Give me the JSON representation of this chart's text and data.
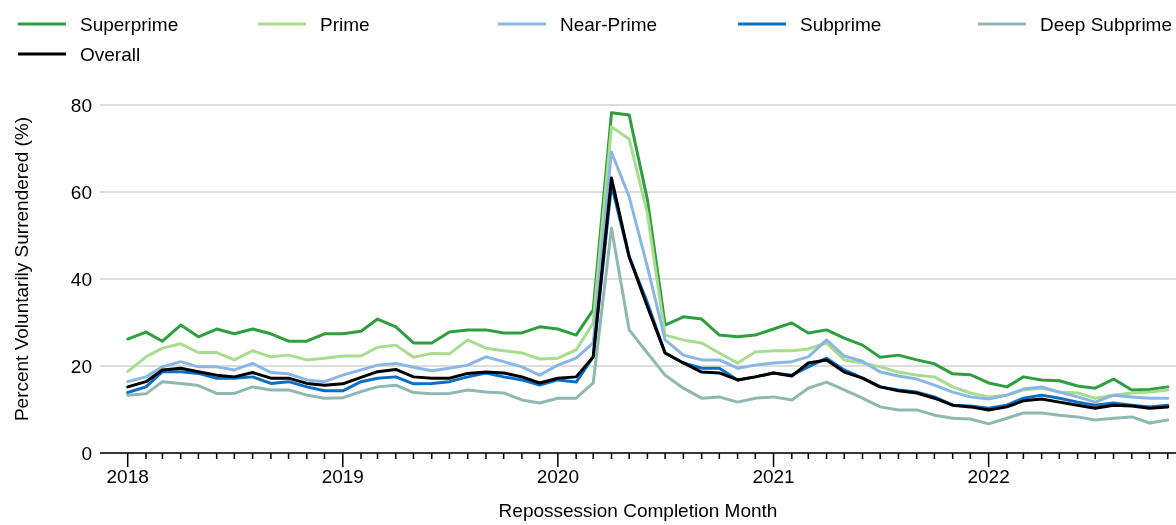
{
  "chart_data": {
    "type": "line",
    "xlabel": "Repossession Completion Month",
    "ylabel": "Percent Voluntarily Surrendered (%)",
    "x": [
      "2018-01",
      "2018-02",
      "2018-03",
      "2018-04",
      "2018-05",
      "2018-06",
      "2018-07",
      "2018-08",
      "2018-09",
      "2018-10",
      "2018-11",
      "2018-12",
      "2019-01",
      "2019-02",
      "2019-03",
      "2019-04",
      "2019-05",
      "2019-06",
      "2019-07",
      "2019-08",
      "2019-09",
      "2019-10",
      "2019-11",
      "2019-12",
      "2020-01",
      "2020-02",
      "2020-03",
      "2020-04",
      "2020-05",
      "2020-06",
      "2020-07",
      "2020-08",
      "2020-09",
      "2020-10",
      "2020-11",
      "2020-12",
      "2021-01",
      "2021-02",
      "2021-03",
      "2021-04",
      "2021-05",
      "2021-06",
      "2021-07",
      "2021-08",
      "2021-09",
      "2021-10",
      "2021-11",
      "2021-12",
      "2022-01",
      "2022-02",
      "2022-03",
      "2022-04",
      "2022-05",
      "2022-06",
      "2022-07",
      "2022-08",
      "2022-09",
      "2022-10",
      "2022-11"
    ],
    "xlim": [
      "2017-11-15",
      "2022-11-15"
    ],
    "xticks": [
      {
        "value": "2018-01",
        "label": "2018"
      },
      {
        "value": "2018-02",
        "label": null
      },
      {
        "value": "2018-03",
        "label": null
      },
      {
        "value": "2018-04",
        "label": null
      },
      {
        "value": "2018-05",
        "label": null
      },
      {
        "value": "2018-06",
        "label": null
      },
      {
        "value": "2018-07",
        "label": null
      },
      {
        "value": "2018-08",
        "label": null
      },
      {
        "value": "2018-09",
        "label": null
      },
      {
        "value": "2018-10",
        "label": null
      },
      {
        "value": "2018-11",
        "label": null
      },
      {
        "value": "2018-12",
        "label": null
      },
      {
        "value": "2019-01",
        "label": "2019"
      },
      {
        "value": "2019-02",
        "label": null
      },
      {
        "value": "2019-03",
        "label": null
      },
      {
        "value": "2019-04",
        "label": null
      },
      {
        "value": "2019-05",
        "label": null
      },
      {
        "value": "2019-06",
        "label": null
      },
      {
        "value": "2019-07",
        "label": null
      },
      {
        "value": "2019-08",
        "label": null
      },
      {
        "value": "2019-09",
        "label": null
      },
      {
        "value": "2019-10",
        "label": null
      },
      {
        "value": "2019-11",
        "label": null
      },
      {
        "value": "2019-12",
        "label": null
      },
      {
        "value": "2020-01",
        "label": "2020"
      },
      {
        "value": "2020-02",
        "label": null
      },
      {
        "value": "2020-03",
        "label": null
      },
      {
        "value": "2020-04",
        "label": null
      },
      {
        "value": "2020-05",
        "label": null
      },
      {
        "value": "2020-06",
        "label": null
      },
      {
        "value": "2020-07",
        "label": null
      },
      {
        "value": "2020-08",
        "label": null
      },
      {
        "value": "2020-09",
        "label": null
      },
      {
        "value": "2020-10",
        "label": null
      },
      {
        "value": "2020-11",
        "label": null
      },
      {
        "value": "2020-12",
        "label": null
      },
      {
        "value": "2021-01",
        "label": "2021"
      },
      {
        "value": "2021-02",
        "label": null
      },
      {
        "value": "2021-03",
        "label": null
      },
      {
        "value": "2021-04",
        "label": null
      },
      {
        "value": "2021-05",
        "label": null
      },
      {
        "value": "2021-06",
        "label": null
      },
      {
        "value": "2021-07",
        "label": null
      },
      {
        "value": "2021-08",
        "label": null
      },
      {
        "value": "2021-09",
        "label": null
      },
      {
        "value": "2021-10",
        "label": null
      },
      {
        "value": "2021-11",
        "label": null
      },
      {
        "value": "2021-12",
        "label": null
      },
      {
        "value": "2022-01",
        "label": "2022"
      },
      {
        "value": "2022-02",
        "label": null
      },
      {
        "value": "2022-03",
        "label": null
      },
      {
        "value": "2022-04",
        "label": null
      },
      {
        "value": "2022-05",
        "label": null
      },
      {
        "value": "2022-06",
        "label": null
      },
      {
        "value": "2022-07",
        "label": null
      },
      {
        "value": "2022-08",
        "label": null
      },
      {
        "value": "2022-09",
        "label": null
      },
      {
        "value": "2022-10",
        "label": null
      },
      {
        "value": "2022-11",
        "label": null
      }
    ],
    "ylim": [
      0,
      80
    ],
    "yticks": [
      0,
      20,
      40,
      60,
      80
    ],
    "grid": "y",
    "legend": "top",
    "series": [
      {
        "name": "Superprime",
        "color": "#2e9e3e",
        "values": [
          26.2,
          27.8,
          25.7,
          29.4,
          26.7,
          28.5,
          27.4,
          28.5,
          27.4,
          25.7,
          25.7,
          27.4,
          27.4,
          28.0,
          30.8,
          29.0,
          25.3,
          25.3,
          27.8,
          28.3,
          28.3,
          27.6,
          27.6,
          29.0,
          28.5,
          27.1,
          32.9,
          78.2,
          77.7,
          58.2,
          29.4,
          31.3,
          30.8,
          27.1,
          26.7,
          27.1,
          28.5,
          29.9,
          27.6,
          28.3,
          26.4,
          24.8,
          22.0,
          22.5,
          21.4,
          20.5,
          18.2,
          18.0,
          16.1,
          15.2,
          17.5,
          16.8,
          16.6,
          15.4,
          14.9,
          17.0,
          14.5,
          14.6,
          15.2
        ]
      },
      {
        "name": "Prime",
        "color": "#a8dc8e",
        "values": [
          18.7,
          22.1,
          24.1,
          25.1,
          23.1,
          23.1,
          21.4,
          23.5,
          22.1,
          22.5,
          21.4,
          21.8,
          22.3,
          22.3,
          24.3,
          24.8,
          22.0,
          22.9,
          22.8,
          26.0,
          24.1,
          23.5,
          23.0,
          21.6,
          21.8,
          23.7,
          29.9,
          75.0,
          72.2,
          55.0,
          27.1,
          26.0,
          25.3,
          23.0,
          20.7,
          23.2,
          23.5,
          23.5,
          23.9,
          25.3,
          21.4,
          20.7,
          19.8,
          18.6,
          17.9,
          17.5,
          15.2,
          13.8,
          12.9,
          13.3,
          14.5,
          14.9,
          14.0,
          13.8,
          12.6,
          13.3,
          13.8,
          14.0,
          14.5
        ]
      },
      {
        "name": "Near-Prime",
        "color": "#8ab6e6",
        "values": [
          16.4,
          17.5,
          19.8,
          21.0,
          19.8,
          19.8,
          19.1,
          20.6,
          18.5,
          18.2,
          16.8,
          16.4,
          17.9,
          19.1,
          20.2,
          20.6,
          19.7,
          18.9,
          19.5,
          20.2,
          22.1,
          21.0,
          19.8,
          17.9,
          20.2,
          21.8,
          25.3,
          69.2,
          58.9,
          42.8,
          26.0,
          22.5,
          21.4,
          21.4,
          19.5,
          20.2,
          20.7,
          21.0,
          22.1,
          26.0,
          22.3,
          21.1,
          18.6,
          17.7,
          17.0,
          15.6,
          14.0,
          12.9,
          12.4,
          13.3,
          14.7,
          15.2,
          14.0,
          12.9,
          11.7,
          13.3,
          12.9,
          12.6,
          12.6
        ]
      },
      {
        "name": "Subprime",
        "color": "#0a6fc4",
        "values": [
          13.9,
          15.2,
          18.7,
          18.7,
          18.3,
          17.2,
          17.2,
          17.5,
          16.0,
          16.4,
          15.2,
          14.3,
          14.3,
          16.4,
          17.2,
          17.5,
          15.9,
          16.0,
          16.4,
          17.5,
          18.4,
          17.5,
          16.8,
          15.6,
          16.8,
          16.3,
          22.1,
          61.6,
          45.1,
          34.5,
          23.0,
          20.7,
          19.5,
          19.5,
          16.8,
          17.5,
          18.4,
          17.9,
          19.8,
          21.8,
          19.1,
          17.2,
          15.2,
          14.5,
          14.0,
          12.9,
          11.0,
          10.8,
          10.3,
          11.0,
          12.6,
          13.3,
          12.6,
          11.7,
          11.0,
          11.5,
          11.0,
          10.6,
          11.0
        ]
      },
      {
        "name": "Deep Subprime",
        "color": "#8fb8b0",
        "values": [
          13.3,
          13.6,
          16.4,
          16.0,
          15.5,
          13.7,
          13.7,
          15.2,
          14.5,
          14.5,
          13.3,
          12.6,
          12.7,
          14.1,
          15.2,
          15.6,
          13.9,
          13.6,
          13.7,
          14.5,
          14.0,
          13.8,
          12.2,
          11.5,
          12.6,
          12.6,
          16.1,
          51.7,
          28.3,
          23.0,
          17.9,
          14.9,
          12.6,
          12.9,
          11.7,
          12.6,
          12.9,
          12.2,
          14.9,
          16.3,
          14.5,
          12.6,
          10.6,
          9.9,
          9.9,
          8.7,
          8.0,
          7.8,
          6.7,
          8.0,
          9.2,
          9.2,
          8.7,
          8.3,
          7.6,
          8.0,
          8.3,
          6.9,
          7.6
        ]
      },
      {
        "name": "Overall",
        "color": "#000000",
        "values": [
          15.2,
          16.4,
          19.1,
          19.5,
          18.7,
          17.9,
          17.5,
          18.5,
          17.2,
          17.2,
          16.0,
          15.6,
          15.9,
          17.4,
          18.7,
          19.2,
          17.5,
          17.2,
          17.2,
          18.3,
          18.6,
          18.4,
          17.5,
          16.1,
          17.2,
          17.5,
          22.1,
          63.2,
          45.1,
          33.6,
          23.0,
          20.7,
          18.6,
          18.4,
          16.8,
          17.5,
          18.4,
          17.7,
          20.7,
          21.4,
          18.6,
          17.2,
          15.2,
          14.3,
          13.8,
          12.6,
          11.0,
          10.6,
          9.9,
          10.6,
          12.0,
          12.4,
          11.7,
          11.0,
          10.3,
          11.0,
          10.8,
          10.3,
          10.6
        ]
      }
    ]
  }
}
